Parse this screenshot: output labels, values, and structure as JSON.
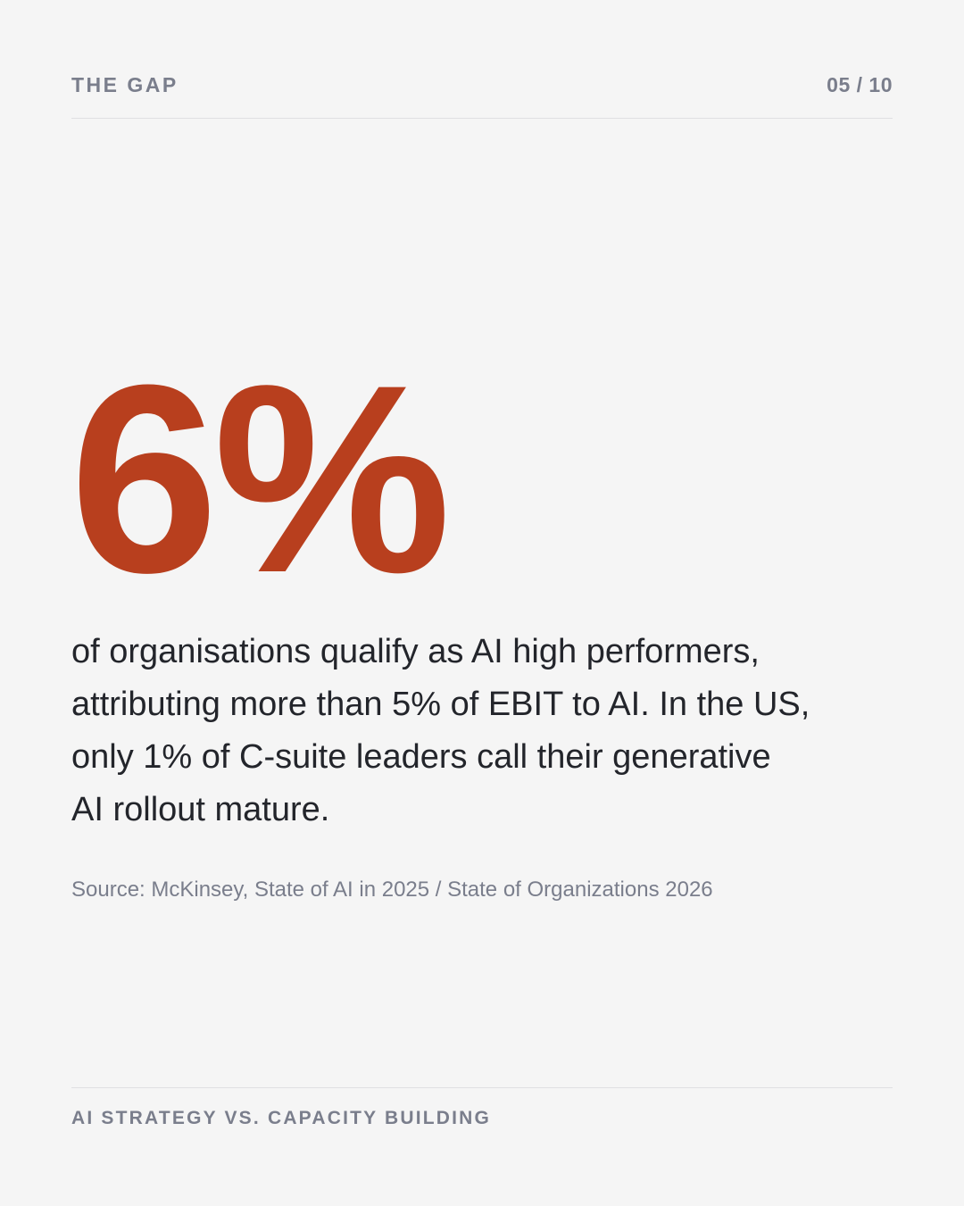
{
  "header": {
    "section_label": "THE GAP",
    "page_counter": "05 / 10"
  },
  "stat": {
    "value": "6%",
    "description_lines": [
      "of organisations qualify as AI high performers,",
      "attributing more than 5% of EBIT to AI. In the US,",
      "only 1% of C-suite leaders call their generative",
      "AI rollout mature."
    ],
    "source": "Source: McKinsey, State of AI in 2025 / State of Organizations 2026"
  },
  "footer": {
    "label": "AI STRATEGY VS. CAPACITY BUILDING"
  },
  "colors": {
    "background": "#f5f5f5",
    "accent": "#b83f1e",
    "body_text": "#23252b",
    "muted_text": "#7a7e8c",
    "divider": "#e0e0e2"
  }
}
